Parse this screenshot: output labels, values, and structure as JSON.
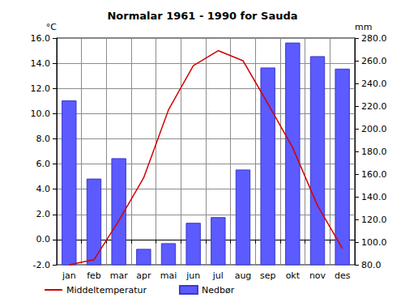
{
  "chart_data": {
    "type": "bar",
    "title": "Normalar 1961 - 1990 for Sauda",
    "categories": [
      "jan",
      "feb",
      "mar",
      "apr",
      "mai",
      "jun",
      "jul",
      "aug",
      "sep",
      "okt",
      "nov",
      "des"
    ],
    "series": [
      {
        "name": "Middeltemperatur",
        "type": "line",
        "color": "#d40000",
        "line_style": "solid",
        "values": [
          -2.0,
          -1.6,
          1.5,
          4.9,
          10.3,
          13.8,
          15.0,
          14.2,
          10.8,
          7.3,
          2.7,
          -0.7
        ]
      },
      {
        "name": "Nedbør",
        "type": "bar",
        "axis": "y2",
        "color": "#5b5bff",
        "values": [
          225,
          156,
          174,
          94,
          99,
          117,
          122,
          164,
          254,
          276,
          264,
          253
        ]
      }
    ],
    "ylabel": "°C",
    "y2label": "mm",
    "ylim": [
      -2,
      16
    ],
    "yticks": [
      {
        "value": -2,
        "label": "-2.0"
      },
      {
        "value": 0,
        "label": "0.0"
      },
      {
        "value": 2,
        "label": "2.0"
      },
      {
        "value": 4,
        "label": "4.0"
      },
      {
        "value": 6,
        "label": "6.0"
      },
      {
        "value": 8,
        "label": "8.0"
      },
      {
        "value": 10,
        "label": "10.0"
      },
      {
        "value": 12,
        "label": "12.0"
      },
      {
        "value": 14,
        "label": "14.0"
      },
      {
        "value": 16,
        "label": "16.0"
      }
    ],
    "y2lim": [
      80,
      280
    ],
    "y2ticks": [
      {
        "value": 80,
        "label": "80.0"
      },
      {
        "value": 100,
        "label": "100.0"
      },
      {
        "value": 120,
        "label": "120.0"
      },
      {
        "value": 140,
        "label": "140.0"
      },
      {
        "value": 160,
        "label": "160.0"
      },
      {
        "value": 180,
        "label": "180.0"
      },
      {
        "value": 200,
        "label": "200.0"
      },
      {
        "value": 220,
        "label": "220.0"
      },
      {
        "value": 240,
        "label": "240.0"
      },
      {
        "value": 260,
        "label": "260.0"
      },
      {
        "value": 280,
        "label": "280.0"
      }
    ],
    "grid": true,
    "legend": "lower left"
  }
}
